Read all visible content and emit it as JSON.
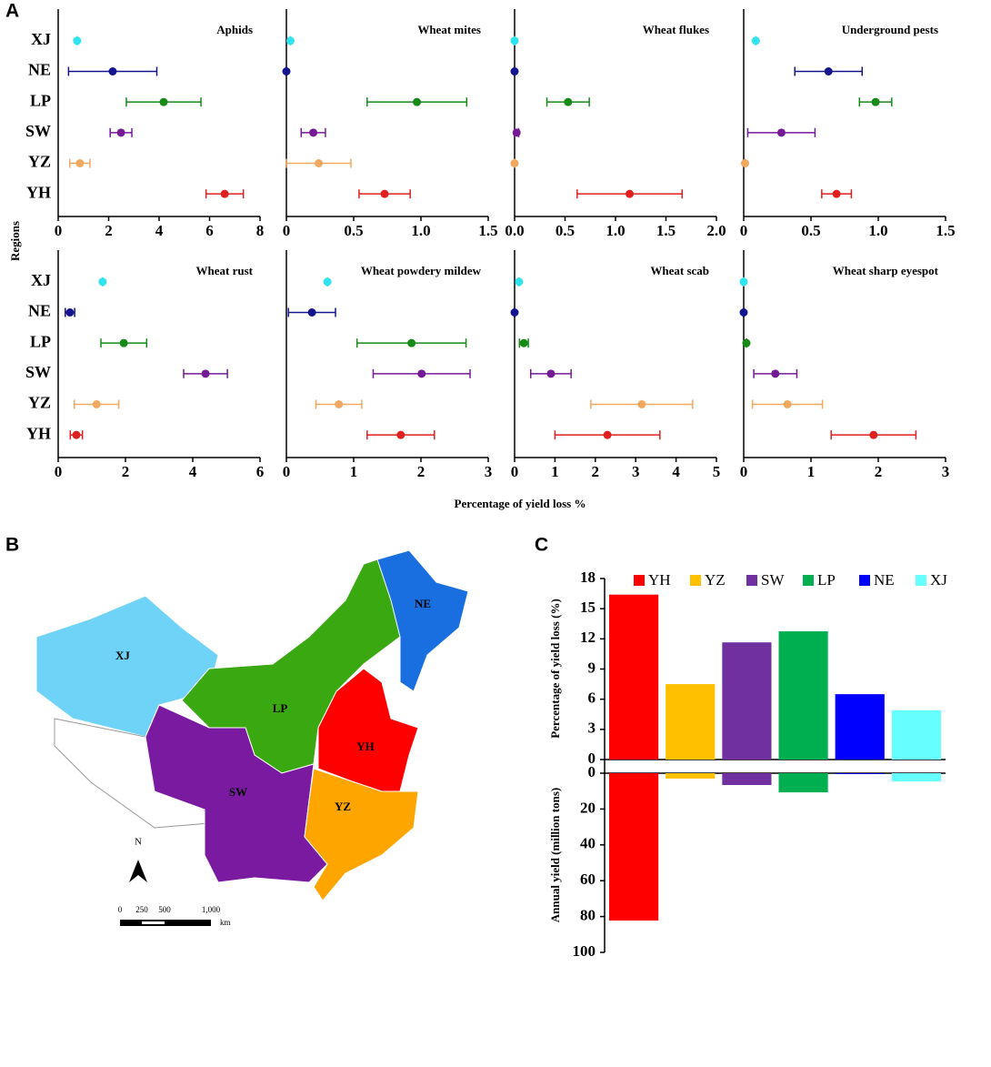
{
  "panel_labels": [
    "A",
    "B",
    "C"
  ],
  "ylabel": "Regions",
  "xlabel": "Percentage of yield loss %",
  "map": {
    "regions": [
      "XJ",
      "NE",
      "LP",
      "YH",
      "SW",
      "YZ"
    ],
    "north": "N",
    "scale": [
      "0",
      "250",
      "500",
      "1,000"
    ],
    "scale_unit": "km"
  },
  "chart_data": [
    {
      "type": "dot-error",
      "title": "Aphids",
      "categories": [
        "XJ",
        "NE",
        "LP",
        "SW",
        "YZ",
        "YH"
      ],
      "colors": [
        "#2fe3ef",
        "#14148f",
        "#168a16",
        "#741a96",
        "#f2a85e",
        "#e01f1f"
      ],
      "values": [
        0.75,
        2.16,
        4.18,
        2.49,
        0.86,
        6.6
      ],
      "errors": [
        0,
        1.75,
        1.48,
        0.43,
        0.4,
        0.74
      ],
      "xlim": [
        0,
        8
      ],
      "xticks": [
        0,
        2,
        4,
        6,
        8
      ]
    },
    {
      "type": "dot-error",
      "title": "Wheat mites",
      "colors": [
        "#2fe3ef",
        "#14148f",
        "#168a16",
        "#741a96",
        "#f2a85e",
        "#e01f1f"
      ],
      "values": [
        0.03,
        0,
        0.97,
        0.2,
        0.24,
        0.73
      ],
      "errors": [
        0,
        0,
        0.37,
        0.09,
        0.24,
        0.19
      ],
      "xlim": [
        0,
        1.5
      ],
      "xticks": [
        0,
        0.5,
        {
          "value": 1,
          "label": "1.0"
        },
        1.5
      ]
    },
    {
      "type": "dot-error",
      "title": "Wheat flukes",
      "colors": [
        "#2fe3ef",
        "#14148f",
        "#168a16",
        "#741a96",
        "#f2a85e",
        "#e01f1f"
      ],
      "values": [
        0,
        0,
        0.53,
        0.02,
        0,
        1.14
      ],
      "errors": [
        0,
        0,
        0.21,
        0.02,
        0,
        0.52
      ],
      "xlim": [
        0,
        2
      ],
      "xticks": [
        {
          "value": 0,
          "label": "0.0"
        },
        0.5,
        {
          "value": 1,
          "label": "1.0"
        },
        1.5,
        {
          "value": 2,
          "label": "2.0"
        }
      ]
    },
    {
      "type": "dot-error",
      "title": "Underground pests",
      "colors": [
        "#2fe3ef",
        "#14148f",
        "#168a16",
        "#741a96",
        "#f2a85e",
        "#e01f1f"
      ],
      "values": [
        0.09,
        0.63,
        0.98,
        0.28,
        0.01,
        0.69
      ],
      "errors": [
        0,
        0.25,
        0.12,
        0.25,
        0,
        0.11
      ],
      "xlim": [
        0,
        1.5
      ],
      "xticks": [
        0,
        0.5,
        {
          "value": 1,
          "label": "1.0"
        },
        1.5
      ]
    },
    {
      "type": "dot-error",
      "title": "Wheat rust",
      "categories": [
        "XJ",
        "NE",
        "LP",
        "SW",
        "YZ",
        "YH"
      ],
      "colors": [
        "#2fe3ef",
        "#14148f",
        "#168a16",
        "#741a96",
        "#f2a85e",
        "#e01f1f"
      ],
      "values": [
        1.32,
        0.35,
        1.95,
        4.38,
        1.14,
        0.54
      ],
      "errors": [
        0,
        0.14,
        0.68,
        0.65,
        0.66,
        0.18
      ],
      "xlim": [
        0,
        6
      ],
      "xticks": [
        0,
        2,
        4,
        6
      ]
    },
    {
      "type": "dot-error",
      "title": "Wheat powdery mildew",
      "colors": [
        "#2fe3ef",
        "#14148f",
        "#168a16",
        "#741a96",
        "#f2a85e",
        "#e01f1f"
      ],
      "values": [
        0.61,
        0.38,
        1.86,
        2.01,
        0.78,
        1.7
      ],
      "errors": [
        0,
        0.35,
        0.81,
        0.72,
        0.34,
        0.5
      ],
      "xlim": [
        0,
        3
      ],
      "xticks": [
        0,
        1,
        2,
        3
      ]
    },
    {
      "type": "dot-error",
      "title": "Wheat scab",
      "colors": [
        "#2fe3ef",
        "#14148f",
        "#168a16",
        "#741a96",
        "#f2a85e",
        "#e01f1f"
      ],
      "values": [
        0.11,
        0,
        0.23,
        0.9,
        3.15,
        2.3
      ],
      "errors": [
        0,
        0,
        0.11,
        0.5,
        1.26,
        1.3
      ],
      "xlim": [
        0,
        5
      ],
      "xticks": [
        0,
        1,
        2,
        3,
        4,
        5
      ]
    },
    {
      "type": "dot-error",
      "title": "Wheat sharp eyespot",
      "colors": [
        "#2fe3ef",
        "#14148f",
        "#168a16",
        "#741a96",
        "#f2a85e",
        "#e01f1f"
      ],
      "values": [
        0,
        0,
        0.04,
        0.47,
        0.65,
        1.93
      ],
      "errors": [
        0,
        0,
        0,
        0.32,
        0.52,
        0.63
      ],
      "xlim": [
        0,
        3
      ],
      "xticks": [
        0,
        1,
        2,
        3
      ]
    },
    {
      "type": "mirror-bar",
      "categories": [
        "YH",
        "YZ",
        "SW",
        "LP",
        "NE",
        "XJ"
      ],
      "colors": [
        "#ff0000",
        "#ffc000",
        "#7030a0",
        "#00b050",
        "#0000ff",
        "#66ffff"
      ],
      "legend": "top",
      "ylabel": "Percentage of yield loss (%)",
      "values": [
        16.4,
        7.5,
        11.65,
        12.75,
        6.5,
        4.9
      ],
      "ylim": [
        0,
        18
      ],
      "yticks": [
        0,
        3,
        6,
        9,
        12,
        15,
        18
      ],
      "y2label": "Annual yield (million tons)",
      "values2": [
        82.2,
        3,
        6.6,
        10.7,
        0.5,
        4.6
      ],
      "y2lim": [
        0,
        100
      ],
      "y2ticks": [
        0,
        20,
        40,
        60,
        80,
        100
      ]
    }
  ]
}
